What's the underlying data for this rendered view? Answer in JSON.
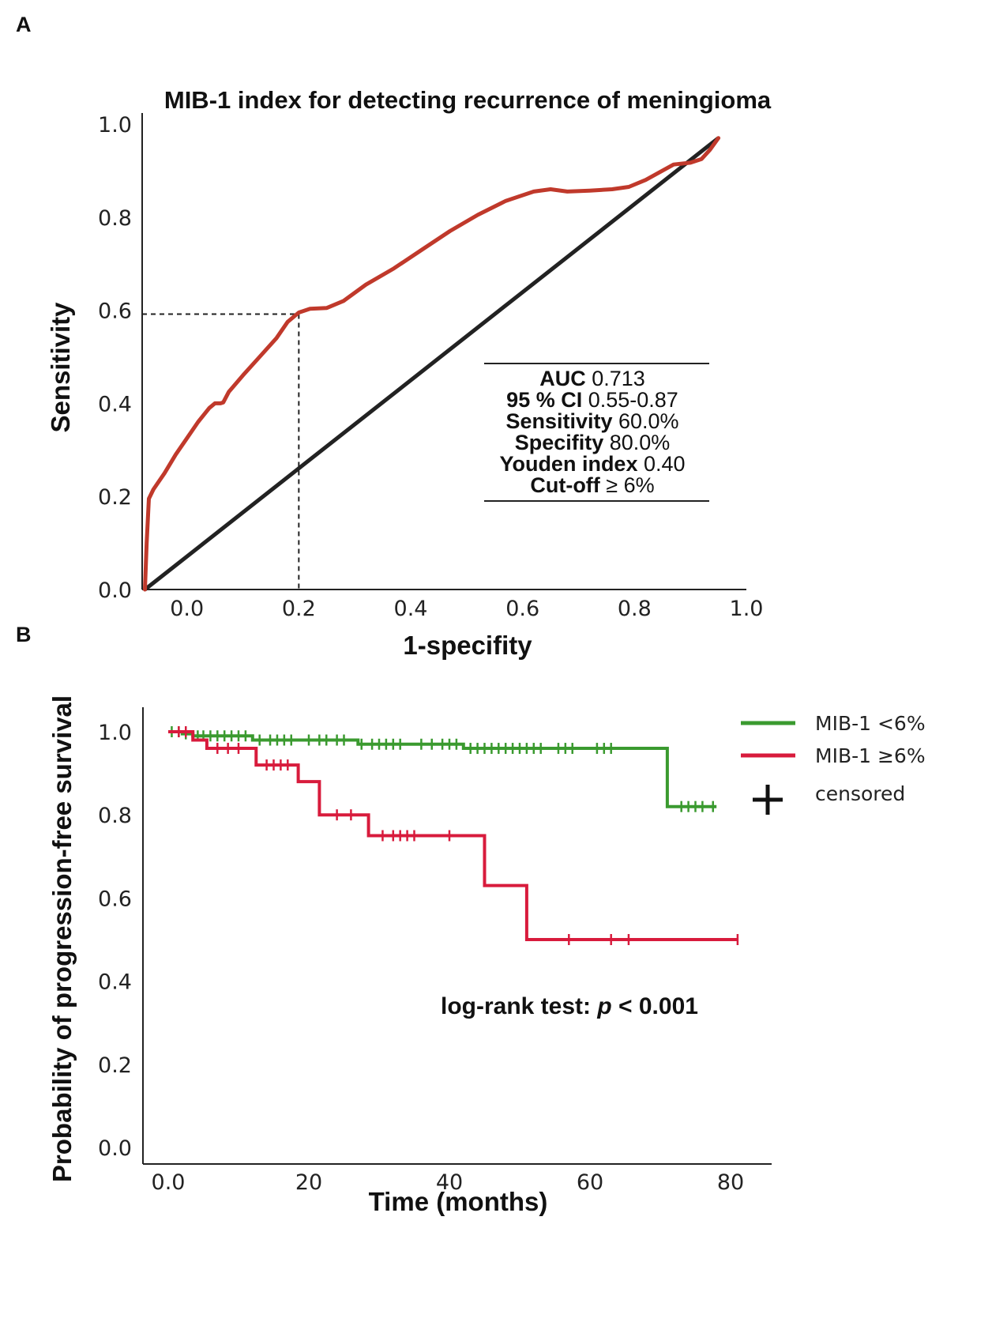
{
  "panels": {
    "a": "A",
    "b": "B"
  },
  "chart_data": [
    {
      "type": "line",
      "title": "MIB-1 index for detecting recurrence of meningioma",
      "xlabel": "1-specifity",
      "ylabel": "Sensitivity",
      "xlim": [
        -0.08,
        1.0
      ],
      "ylim": [
        0.0,
        1.0
      ],
      "xticks": [
        "0.0",
        "0.2",
        "0.4",
        "0.6",
        "0.8",
        "1.0"
      ],
      "yticks": [
        "0.0",
        "0.2",
        "0.4",
        "0.6",
        "0.8",
        "1.0"
      ],
      "series": [
        {
          "color": "#c0392b",
          "x": [
            -0.075,
            -0.072,
            -0.068,
            -0.06,
            -0.04,
            -0.02,
            0.0,
            0.02,
            0.04,
            0.05,
            0.06,
            0.065,
            0.075,
            0.1,
            0.13,
            0.16,
            0.18,
            0.2,
            0.22,
            0.25,
            0.28,
            0.32,
            0.37,
            0.42,
            0.47,
            0.52,
            0.57,
            0.62,
            0.65,
            0.68,
            0.72,
            0.76,
            0.79,
            0.82,
            0.85,
            0.87,
            0.9,
            0.92,
            0.935,
            0.95
          ],
          "y": [
            0.0,
            0.1,
            0.195,
            0.215,
            0.25,
            0.29,
            0.325,
            0.36,
            0.39,
            0.4,
            0.4,
            0.402,
            0.425,
            0.46,
            0.5,
            0.54,
            0.575,
            0.595,
            0.603,
            0.605,
            0.62,
            0.655,
            0.69,
            0.73,
            0.77,
            0.805,
            0.835,
            0.855,
            0.86,
            0.855,
            0.857,
            0.86,
            0.865,
            0.88,
            0.9,
            0.913,
            0.917,
            0.925,
            0.945,
            0.97
          ]
        },
        {
          "color": "#222222",
          "x": [
            -0.075,
            0.95
          ],
          "y": [
            0.0,
            0.97
          ]
        }
      ],
      "cutoff_point": {
        "x": 0.2,
        "y": 0.595
      },
      "stats": [
        {
          "label": "AUC",
          "value": "0.713"
        },
        {
          "label": "95 % CI",
          "value": "0.55-0.87"
        },
        {
          "label": "Sensitivity",
          "value": "60.0%"
        },
        {
          "label": "Specifity",
          "value": "80.0%"
        },
        {
          "label": "Youden index",
          "value": "0.40"
        },
        {
          "label": "Cut-off",
          "value": "≥ 6%"
        }
      ]
    },
    {
      "type": "line",
      "title": "",
      "xlabel": "Time (months)",
      "ylabel": "Probability of progression-free survival",
      "xlim": [
        -3,
        85
      ],
      "ylim": [
        0.0,
        1.05
      ],
      "xticks": [
        "0.0",
        "20",
        "40",
        "60",
        "80"
      ],
      "yticks": [
        "0.0",
        "0.2",
        "0.4",
        "0.6",
        "0.8",
        "1.0"
      ],
      "legend_placement": "top-right",
      "series": [
        {
          "name": "MIB-1 <6%",
          "color": "#3a9a2f",
          "steps": [
            [
              0,
              1.0
            ],
            [
              2,
              0.995
            ],
            [
              3.5,
              0.99
            ],
            [
              12,
              0.98
            ],
            [
              27,
              0.97
            ],
            [
              42,
              0.96
            ],
            [
              71,
              0.82
            ],
            [
              78,
              0.82
            ]
          ],
          "censored": [
            0.5,
            1.5,
            2.5,
            4.2,
            5,
            6,
            7,
            8,
            9,
            10,
            11,
            13,
            14.5,
            15.5,
            16.5,
            17.5,
            20,
            21.5,
            22.5,
            24,
            25,
            27.5,
            29,
            30,
            31,
            32,
            33,
            36,
            37.5,
            39,
            40,
            41,
            43,
            44,
            45,
            46,
            47,
            48,
            49,
            50,
            51,
            52,
            53,
            55.5,
            56.5,
            57.5,
            61,
            62,
            63,
            73,
            74,
            75,
            76,
            77.5
          ]
        },
        {
          "name": "MIB-1 ≥6%",
          "color": "#d81b3c",
          "steps": [
            [
              0,
              1.0
            ],
            [
              3.5,
              0.98
            ],
            [
              5.5,
              0.96
            ],
            [
              12.5,
              0.92
            ],
            [
              18.5,
              0.88
            ],
            [
              21.5,
              0.8
            ],
            [
              28.5,
              0.75
            ],
            [
              45,
              0.63
            ],
            [
              51,
              0.5
            ],
            [
              81,
              0.5
            ]
          ],
          "censored": [
            1.5,
            2.5,
            7,
            8.5,
            10,
            14,
            15,
            16,
            17,
            24,
            26,
            30.5,
            32,
            33,
            34,
            35,
            40,
            57,
            63,
            65.5,
            81
          ]
        }
      ],
      "legend_censored": "censored",
      "annotation": {
        "prefix": "log-rank test: ",
        "p": "p",
        "suffix": " < 0.001"
      }
    }
  ]
}
